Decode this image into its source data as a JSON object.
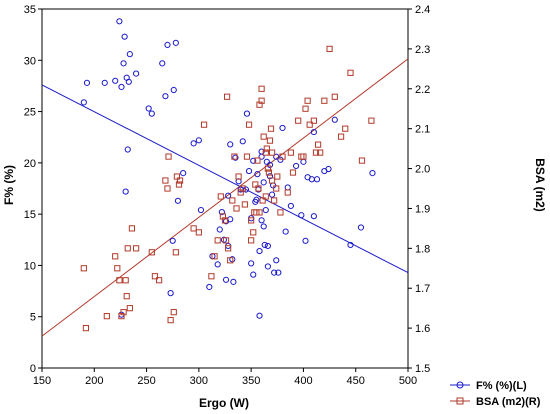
{
  "chart_data": {
    "type": "scatter",
    "xlabel": "Ergo (W)",
    "ylabel_left": "F% (%)",
    "ylabel_right": "BSA (m2)",
    "xlim": [
      150,
      500
    ],
    "ylim_left": [
      0,
      35
    ],
    "ylim_right": [
      1.5,
      2.4
    ],
    "x_ticks": [
      "150",
      "200",
      "250",
      "300",
      "350",
      "400",
      "450",
      "500"
    ],
    "y_ticks_left": [
      "0",
      "5",
      "10",
      "15",
      "20",
      "25",
      "30",
      "35"
    ],
    "y_ticks_right": [
      "1.5",
      "1.6",
      "1.7",
      "1.8",
      "1.9",
      "2.0",
      "2.1",
      "2.2",
      "2.3",
      "2.4"
    ],
    "grid": false,
    "legend_position": "bottom-right",
    "colors": {
      "left_series": "#1a1acc",
      "right_series": "#b33a2a"
    },
    "series": [
      {
        "name": "F% (%)(L)",
        "axis": "left",
        "marker": "circle",
        "fit_line": {
          "x": [
            150,
            500
          ],
          "y": [
            27.6,
            9.3
          ]
        },
        "points": [
          [
            190,
            25.9
          ],
          [
            193,
            27.8
          ],
          [
            210,
            27.8
          ],
          [
            220,
            28.0
          ],
          [
            224,
            33.8
          ],
          [
            226,
            27.4
          ],
          [
            226,
            5.2
          ],
          [
            228,
            29.7
          ],
          [
            229,
            32.3
          ],
          [
            230,
            17.2
          ],
          [
            231,
            28.3
          ],
          [
            232,
            21.3
          ],
          [
            233,
            27.9
          ],
          [
            234,
            30.6
          ],
          [
            240,
            28.7
          ],
          [
            252,
            25.3
          ],
          [
            255,
            24.8
          ],
          [
            265,
            29.7
          ],
          [
            268,
            26.5
          ],
          [
            270,
            31.5
          ],
          [
            273,
            7.3
          ],
          [
            275,
            12.4
          ],
          [
            276,
            27.1
          ],
          [
            278,
            31.7
          ],
          [
            280,
            16.3
          ],
          [
            285,
            19.0
          ],
          [
            295,
            21.9
          ],
          [
            300,
            22.2
          ],
          [
            302,
            15.4
          ],
          [
            310,
            7.9
          ],
          [
            313,
            10.9
          ],
          [
            318,
            10.1
          ],
          [
            320,
            13.5
          ],
          [
            322,
            15.2
          ],
          [
            324,
            12.5
          ],
          [
            326,
            14.3
          ],
          [
            326,
            8.6
          ],
          [
            328,
            11.9
          ],
          [
            328,
            16.8
          ],
          [
            330,
            21.8
          ],
          [
            332,
            10.6
          ],
          [
            333,
            8.4
          ],
          [
            335,
            20.5
          ],
          [
            338,
            18.2
          ],
          [
            340,
            17.4
          ],
          [
            342,
            22.1
          ],
          [
            345,
            17.4
          ],
          [
            346,
            24.8
          ],
          [
            348,
            19.2
          ],
          [
            350,
            10.2
          ],
          [
            350,
            14.6
          ],
          [
            352,
            9.1
          ],
          [
            352,
            20.2
          ],
          [
            354,
            16.2
          ],
          [
            355,
            16.4
          ],
          [
            356,
            18.9
          ],
          [
            357,
            17.4
          ],
          [
            358,
            11.4
          ],
          [
            358,
            5.1
          ],
          [
            360,
            14.4
          ],
          [
            360,
            20.6
          ],
          [
            360,
            21.1
          ],
          [
            362,
            18.1
          ],
          [
            362,
            13.8
          ],
          [
            363,
            12.0
          ],
          [
            364,
            15.4
          ],
          [
            365,
            20.1
          ],
          [
            366,
            11.9
          ],
          [
            366,
            9.9
          ],
          [
            368,
            18.7
          ],
          [
            368,
            19.8
          ],
          [
            370,
            16.9
          ],
          [
            371,
            17.8
          ],
          [
            372,
            9.3
          ],
          [
            374,
            10.5
          ],
          [
            374,
            20.6
          ],
          [
            376,
            9.3
          ],
          [
            378,
            20.3
          ],
          [
            380,
            23.4
          ],
          [
            383,
            13.3
          ],
          [
            385,
            17.6
          ],
          [
            388,
            15.8
          ],
          [
            393,
            19.7
          ],
          [
            398,
            14.9
          ],
          [
            400,
            20.1
          ],
          [
            402,
            12.4
          ],
          [
            404,
            18.6
          ],
          [
            408,
            18.4
          ],
          [
            410,
            14.8
          ],
          [
            413,
            18.4
          ],
          [
            420,
            19.2
          ],
          [
            424,
            19.4
          ],
          [
            430,
            24.2
          ],
          [
            445,
            12.0
          ],
          [
            455,
            13.7
          ],
          [
            466,
            19.0
          ],
          [
            410,
            23.0
          ],
          [
            330,
            14.5
          ]
        ]
      },
      {
        "name": "BSA (m2)(R)",
        "axis": "right",
        "marker": "square",
        "fit_line": {
          "x": [
            150,
            500
          ],
          "y": [
            1.58,
            2.275
          ]
        },
        "points": [
          [
            190,
            1.75
          ],
          [
            192,
            1.6
          ],
          [
            212,
            1.63
          ],
          [
            220,
            1.78
          ],
          [
            222,
            1.75
          ],
          [
            224,
            1.72
          ],
          [
            226,
            1.63
          ],
          [
            228,
            1.64
          ],
          [
            230,
            1.72
          ],
          [
            231,
            1.68
          ],
          [
            232,
            1.8
          ],
          [
            234,
            1.65
          ],
          [
            236,
            1.85
          ],
          [
            240,
            1.8
          ],
          [
            255,
            1.79
          ],
          [
            258,
            1.73
          ],
          [
            262,
            1.72
          ],
          [
            268,
            1.97
          ],
          [
            270,
            1.95
          ],
          [
            271,
            2.03
          ],
          [
            273,
            1.62
          ],
          [
            278,
            1.79
          ],
          [
            279,
            1.98
          ],
          [
            281,
            1.96
          ],
          [
            282,
            1.97
          ],
          [
            295,
            1.85
          ],
          [
            305,
            2.11
          ],
          [
            312,
            1.73
          ],
          [
            315,
            1.78
          ],
          [
            318,
            1.82
          ],
          [
            321,
            1.93
          ],
          [
            323,
            1.88
          ],
          [
            325,
            1.87
          ],
          [
            326,
            1.82
          ],
          [
            327,
            2.18
          ],
          [
            328,
            1.8
          ],
          [
            330,
            1.77
          ],
          [
            332,
            1.92
          ],
          [
            334,
            2.03
          ],
          [
            336,
            1.9
          ],
          [
            338,
            1.98
          ],
          [
            340,
            1.94
          ],
          [
            342,
            1.95
          ],
          [
            344,
            1.91
          ],
          [
            346,
            2.03
          ],
          [
            348,
            2.11
          ],
          [
            350,
            1.87
          ],
          [
            350,
            1.82
          ],
          [
            352,
            1.84
          ],
          [
            353,
            1.89
          ],
          [
            354,
            1.96
          ],
          [
            355,
            1.89
          ],
          [
            356,
            2.02
          ],
          [
            357,
            1.95
          ],
          [
            358,
            1.89
          ],
          [
            358,
            2.16
          ],
          [
            360,
            2.17
          ],
          [
            360,
            2.2
          ],
          [
            361,
            1.92
          ],
          [
            362,
            2.08
          ],
          [
            364,
            2.04
          ],
          [
            364,
            1.93
          ],
          [
            365,
            2.05
          ],
          [
            366,
            2.0
          ],
          [
            367,
            1.99
          ],
          [
            368,
            2.07
          ],
          [
            369,
            2.1
          ],
          [
            370,
            1.97
          ],
          [
            370,
            2.04
          ],
          [
            372,
            1.92
          ],
          [
            374,
            1.95
          ],
          [
            375,
            1.98
          ],
          [
            378,
            1.89
          ],
          [
            380,
            2.03
          ],
          [
            385,
            1.94
          ],
          [
            388,
            2.04
          ],
          [
            390,
            1.99
          ],
          [
            395,
            2.12
          ],
          [
            398,
            2.03
          ],
          [
            400,
            2.03
          ],
          [
            402,
            2.15
          ],
          [
            404,
            2.17
          ],
          [
            406,
            2.11
          ],
          [
            410,
            2.12
          ],
          [
            412,
            2.04
          ],
          [
            414,
            2.06
          ],
          [
            416,
            2.04
          ],
          [
            420,
            2.17
          ],
          [
            425,
            2.3
          ],
          [
            430,
            2.18
          ],
          [
            436,
            2.08
          ],
          [
            440,
            2.1
          ],
          [
            445,
            2.24
          ],
          [
            456,
            2.02
          ],
          [
            465,
            2.12
          ],
          [
            300,
            1.84
          ],
          [
            276,
            1.64
          ]
        ]
      }
    ]
  }
}
